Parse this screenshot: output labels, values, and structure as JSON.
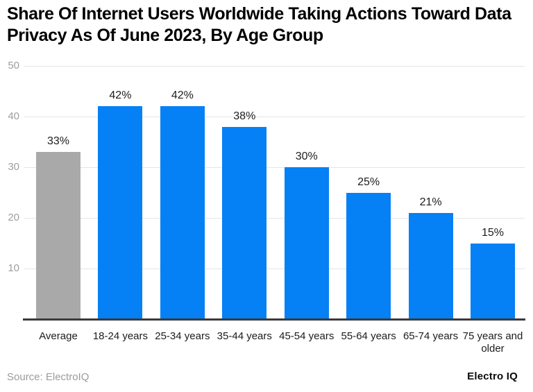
{
  "header": {
    "title": "Share Of Internet Users Worldwide Taking Actions Toward Data Privacy As Of June 2023, By Age Group"
  },
  "footer": {
    "source": "Source: ElectroIQ",
    "brand": "Electro IQ"
  },
  "colors": {
    "bar_blue": "#0580f5",
    "bar_gray": "#a9a9a9",
    "gridline": "#e4e4e4",
    "axis_line": "#3a3a3a",
    "y_tick_text": "#9e9e9e",
    "label_text": "#1c1c1c"
  },
  "chart_data": {
    "type": "bar",
    "title": "Share Of Internet Users Worldwide Taking Actions Toward Data Privacy As Of June 2023, By Age Group",
    "categories": [
      "Average",
      "18-24 years",
      "25-34 years",
      "35-44 years",
      "45-54 years",
      "55-64 years",
      "65-74 years",
      "75 years and older"
    ],
    "values": [
      33,
      42,
      42,
      38,
      30,
      25,
      21,
      15
    ],
    "value_labels": [
      "33%",
      "42%",
      "42%",
      "38%",
      "30%",
      "25%",
      "21%",
      "15%"
    ],
    "bar_colors": [
      "#a9a9a9",
      "#0580f5",
      "#0580f5",
      "#0580f5",
      "#0580f5",
      "#0580f5",
      "#0580f5",
      "#0580f5"
    ],
    "xlabel": "",
    "ylabel": "",
    "ylim": [
      0,
      50
    ],
    "yticks": [
      10,
      20,
      30,
      40,
      50
    ],
    "grid": true,
    "legend_position": "none"
  }
}
